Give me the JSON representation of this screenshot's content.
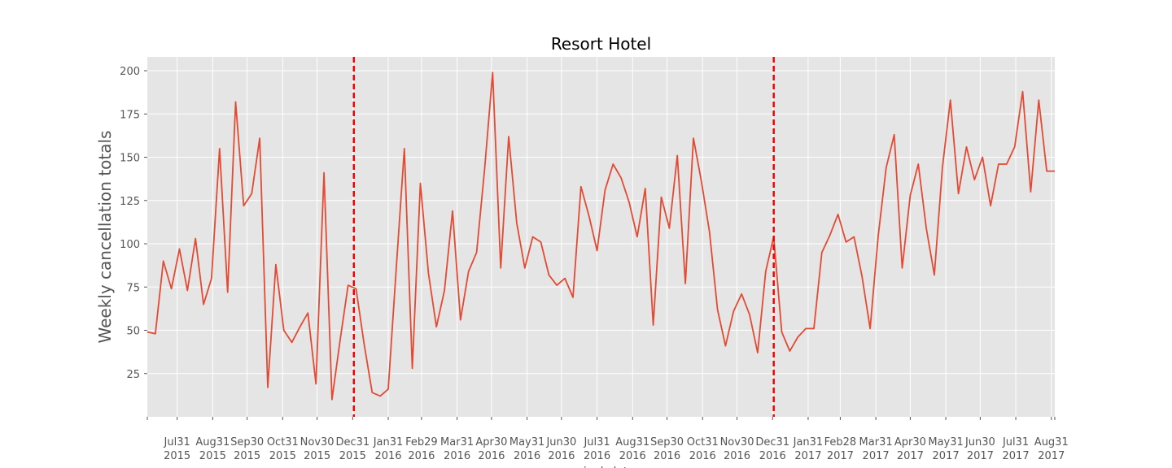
{
  "chart_data": {
    "type": "line",
    "title": "Resort Hotel",
    "ylabel": "Weekly cancellation totals",
    "xlabel": "arrival_date",
    "ylim": [
      0,
      208
    ],
    "yticks": [
      25,
      50,
      75,
      100,
      125,
      150,
      175,
      200
    ],
    "grid": true,
    "x_start": "2015-07-05",
    "x_end": "2017-09-03",
    "series": [
      {
        "color": "#e24a33",
        "x": [
          "2015-07-05",
          "2015-07-12",
          "2015-07-19",
          "2015-07-26",
          "2015-08-02",
          "2015-08-09",
          "2015-08-16",
          "2015-08-23",
          "2015-08-30",
          "2015-09-06",
          "2015-09-13",
          "2015-09-20",
          "2015-09-27",
          "2015-10-04",
          "2015-10-11",
          "2015-10-18",
          "2015-10-25",
          "2015-11-01",
          "2015-11-08",
          "2015-11-15",
          "2015-11-22",
          "2015-11-29",
          "2015-12-06",
          "2015-12-13",
          "2015-12-20",
          "2015-12-27",
          "2016-01-03",
          "2016-01-10",
          "2016-01-17",
          "2016-01-24",
          "2016-01-31",
          "2016-02-07",
          "2016-02-14",
          "2016-02-21",
          "2016-02-28",
          "2016-03-06",
          "2016-03-13",
          "2016-03-20",
          "2016-03-27",
          "2016-04-03",
          "2016-04-10",
          "2016-04-17",
          "2016-04-24",
          "2016-05-01",
          "2016-05-08",
          "2016-05-15",
          "2016-05-22",
          "2016-05-29",
          "2016-06-05",
          "2016-06-12",
          "2016-06-19",
          "2016-06-26",
          "2016-07-03",
          "2016-07-10",
          "2016-07-17",
          "2016-07-24",
          "2016-07-31",
          "2016-08-07",
          "2016-08-14",
          "2016-08-21",
          "2016-08-28",
          "2016-09-04",
          "2016-09-11",
          "2016-09-18",
          "2016-09-25",
          "2016-10-02",
          "2016-10-09",
          "2016-10-16",
          "2016-10-23",
          "2016-10-30",
          "2016-11-06",
          "2016-11-13",
          "2016-11-20",
          "2016-11-27",
          "2016-12-04",
          "2016-12-11",
          "2016-12-18",
          "2016-12-25",
          "2017-01-01",
          "2017-01-08",
          "2017-01-15",
          "2017-01-22",
          "2017-01-29",
          "2017-02-05",
          "2017-02-12",
          "2017-02-19",
          "2017-02-26",
          "2017-03-05",
          "2017-03-12",
          "2017-03-19",
          "2017-03-26",
          "2017-04-02",
          "2017-04-09",
          "2017-04-16",
          "2017-04-23",
          "2017-04-30",
          "2017-05-07",
          "2017-05-14",
          "2017-05-21",
          "2017-05-28",
          "2017-06-04",
          "2017-06-11",
          "2017-06-18",
          "2017-06-25",
          "2017-07-02",
          "2017-07-09",
          "2017-07-16",
          "2017-07-23",
          "2017-07-30",
          "2017-08-06",
          "2017-08-13",
          "2017-08-20",
          "2017-08-27",
          "2017-09-03"
        ],
        "values": [
          49,
          48,
          90,
          74,
          97,
          73,
          103,
          65,
          80,
          155,
          72,
          182,
          122,
          129,
          161,
          17,
          88,
          50,
          43,
          52,
          60,
          19,
          141,
          10,
          44,
          76,
          74,
          42,
          14,
          12,
          16,
          86,
          155,
          28,
          135,
          83,
          52,
          73,
          119,
          56,
          84,
          95,
          143,
          199,
          86,
          162,
          112,
          86,
          104,
          101,
          82,
          76,
          80,
          69,
          133,
          116,
          96,
          131,
          146,
          138,
          124,
          104,
          132,
          53,
          127,
          109,
          151,
          77,
          161,
          136,
          107,
          62,
          41,
          61,
          71,
          59,
          37,
          84,
          104,
          49,
          38,
          46,
          51,
          51,
          95,
          105,
          117,
          101,
          104,
          81,
          51,
          104,
          144,
          163,
          86,
          128,
          146,
          109,
          82,
          144,
          183,
          129,
          156,
          137,
          150,
          122,
          146,
          146,
          156,
          188,
          130,
          183,
          142,
          142
        ]
      }
    ],
    "vlines": [
      "2016-01-01",
      "2017-01-01"
    ],
    "vline_color": "#ee0000",
    "xtick_labels": [
      {
        "date": "2015-07-31",
        "line1": "Jul31",
        "line2": "2015"
      },
      {
        "date": "2015-08-31",
        "line1": "Aug31",
        "line2": "2015"
      },
      {
        "date": "2015-09-30",
        "line1": "Sep30",
        "line2": "2015"
      },
      {
        "date": "2015-10-31",
        "line1": "Oct31",
        "line2": "2015"
      },
      {
        "date": "2015-11-30",
        "line1": "Nov30",
        "line2": "2015"
      },
      {
        "date": "2015-12-31",
        "line1": "Dec31",
        "line2": "2015"
      },
      {
        "date": "2016-01-31",
        "line1": "Jan31",
        "line2": "2016"
      },
      {
        "date": "2016-02-29",
        "line1": "Feb29",
        "line2": "2016"
      },
      {
        "date": "2016-03-31",
        "line1": "Mar31",
        "line2": "2016"
      },
      {
        "date": "2016-04-30",
        "line1": "Apr30",
        "line2": "2016"
      },
      {
        "date": "2016-05-31",
        "line1": "May31",
        "line2": "2016"
      },
      {
        "date": "2016-06-30",
        "line1": "Jun30",
        "line2": "2016"
      },
      {
        "date": "2016-07-31",
        "line1": "Jul31",
        "line2": "2016"
      },
      {
        "date": "2016-08-31",
        "line1": "Aug31",
        "line2": "2016"
      },
      {
        "date": "2016-09-30",
        "line1": "Sep30",
        "line2": "2016"
      },
      {
        "date": "2016-10-31",
        "line1": "Oct31",
        "line2": "2016"
      },
      {
        "date": "2016-11-30",
        "line1": "Nov30",
        "line2": "2016"
      },
      {
        "date": "2016-12-31",
        "line1": "Dec31",
        "line2": "2016"
      },
      {
        "date": "2017-01-31",
        "line1": "Jan31",
        "line2": "2017"
      },
      {
        "date": "2017-02-28",
        "line1": "Feb28",
        "line2": "2017"
      },
      {
        "date": "2017-03-31",
        "line1": "Mar31",
        "line2": "2017"
      },
      {
        "date": "2017-04-30",
        "line1": "Apr30",
        "line2": "2017"
      },
      {
        "date": "2017-05-31",
        "line1": "May31",
        "line2": "2017"
      },
      {
        "date": "2017-06-30",
        "line1": "Jun30",
        "line2": "2017"
      },
      {
        "date": "2017-07-31",
        "line1": "Jul31",
        "line2": "2017"
      },
      {
        "date": "2017-08-31",
        "line1": "Aug31",
        "line2": "2017"
      }
    ]
  }
}
